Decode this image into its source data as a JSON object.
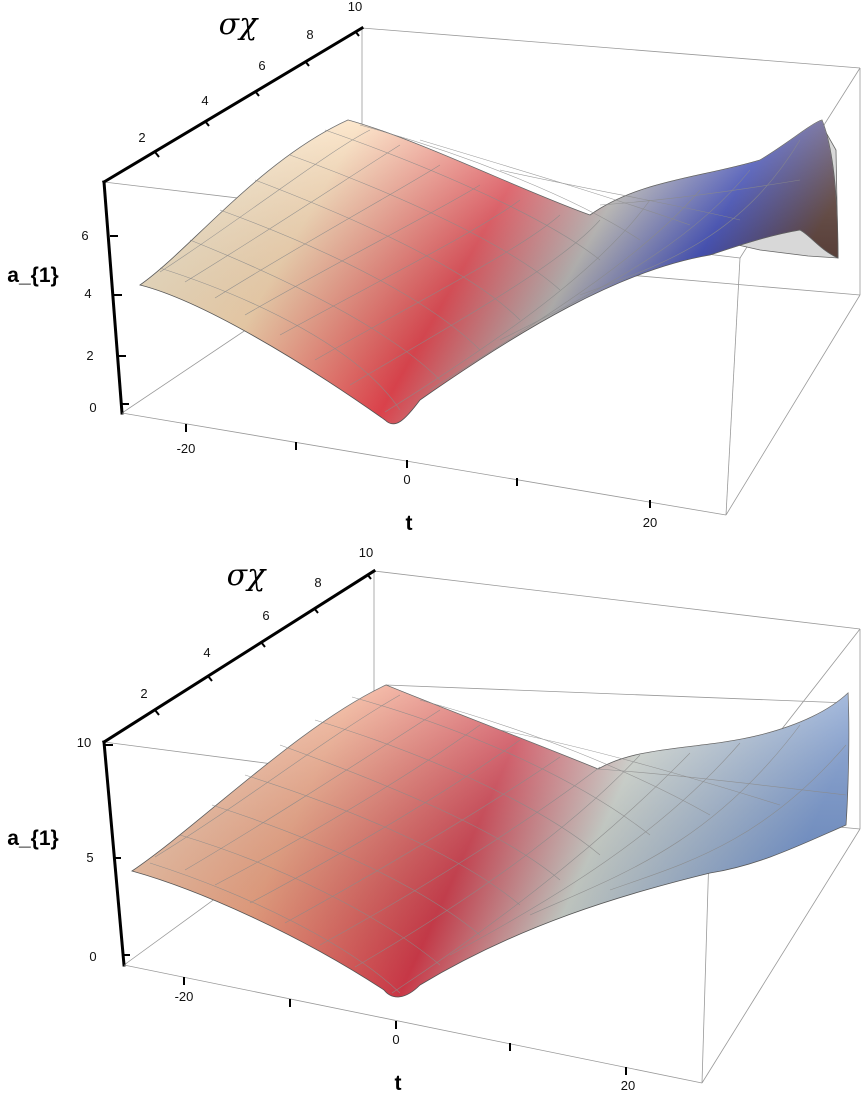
{
  "chart_data": [
    {
      "type": "surface3d",
      "xlabel": "t",
      "ylabel": "σχ",
      "zlabel": "a_{1}",
      "xticks": [
        "-20",
        "0",
        "20"
      ],
      "yticks": [
        "2",
        "4",
        "6",
        "8",
        "10"
      ],
      "zticks": [
        "0",
        "2",
        "4",
        "6"
      ],
      "xlim": [
        -25,
        25
      ],
      "ylim": [
        0,
        10
      ],
      "zlim": [
        0,
        7.5
      ],
      "colormap": [
        "#f6f1d8",
        "#fbd9b0",
        "#e8454f",
        "#9aa6b8",
        "#2a3bb5",
        "#4a2a22"
      ],
      "surface_profile": {
        "t": [
          -25,
          -20,
          -15,
          -10,
          -5,
          0,
          5,
          10,
          15,
          20,
          25
        ],
        "a1_at_sigma_min": [
          4.3,
          3.6,
          2.4,
          1.3,
          0.5,
          0.3,
          1.7,
          3.6,
          5.3,
          7.0,
          7.2
        ],
        "a1_at_sigma_max": [
          7.4,
          7.2,
          6.6,
          6.2,
          6.4,
          6.6,
          6.2,
          6.0,
          6.6,
          7.3,
          3.3
        ]
      }
    },
    {
      "type": "surface3d",
      "xlabel": "t",
      "ylabel": "σχ",
      "zlabel": "a_{1}",
      "xticks": [
        "-20",
        "0",
        "20"
      ],
      "yticks": [
        "2",
        "4",
        "6",
        "8",
        "10"
      ],
      "zticks": [
        "0",
        "5",
        "10"
      ],
      "xlim": [
        -25,
        25
      ],
      "ylim": [
        0,
        10
      ],
      "zlim": [
        0,
        10
      ],
      "colormap": [
        "#f9dcc0",
        "#f2a482",
        "#d43a4a",
        "#c9d4d0",
        "#6f92cf"
      ],
      "surface_profile": {
        "t": [
          -25,
          -20,
          -15,
          -10,
          -5,
          0,
          5,
          10,
          15,
          20,
          25
        ],
        "a1_at_sigma_min": [
          4.3,
          3.5,
          2.3,
          1.2,
          0.4,
          0.2,
          1.6,
          3.2,
          4.4,
          5.0,
          5.4
        ],
        "a1_at_sigma_max": [
          10.2,
          9.6,
          8.8,
          8.2,
          8.6,
          9.0,
          8.8,
          8.6,
          9.0,
          9.6,
          10.6
        ]
      }
    }
  ]
}
